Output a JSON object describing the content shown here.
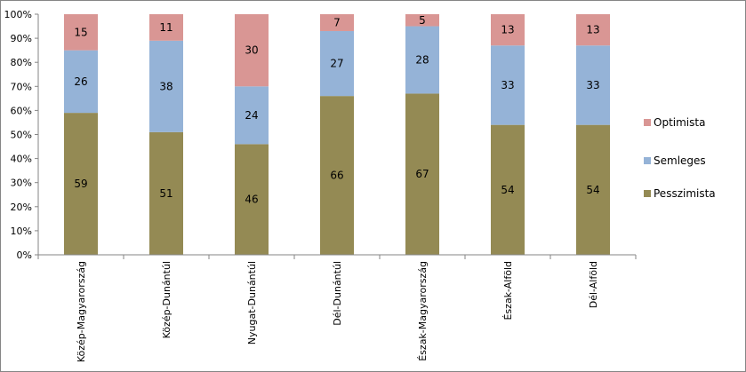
{
  "chart_data": {
    "type": "bar",
    "stacked": "percent",
    "categories": [
      "Közép-Magyarország",
      "Közép-Dunántúl",
      "Nyugat-Dunántúl",
      "Dél-Dunántúl",
      "Észak-Magyarország",
      "Észak-Alföld",
      "Dél-Alföld"
    ],
    "series": [
      {
        "name": "Pesszimista",
        "values": [
          59,
          51,
          46,
          66,
          67,
          54,
          54
        ],
        "color": "#948A54"
      },
      {
        "name": "Semleges",
        "values": [
          26,
          38,
          24,
          27,
          28,
          33,
          33
        ],
        "color": "#95B3D7"
      },
      {
        "name": "Optimista",
        "values": [
          15,
          11,
          30,
          7,
          5,
          13,
          13
        ],
        "color": "#D99694"
      }
    ],
    "y_ticks": [
      "0%",
      "10%",
      "20%",
      "30%",
      "40%",
      "50%",
      "60%",
      "70%",
      "80%",
      "90%",
      "100%"
    ],
    "ylim": [
      0,
      100
    ],
    "legend_order": [
      "Optimista",
      "Semleges",
      "Pesszimista"
    ],
    "legend_position": "right",
    "grid": false
  }
}
